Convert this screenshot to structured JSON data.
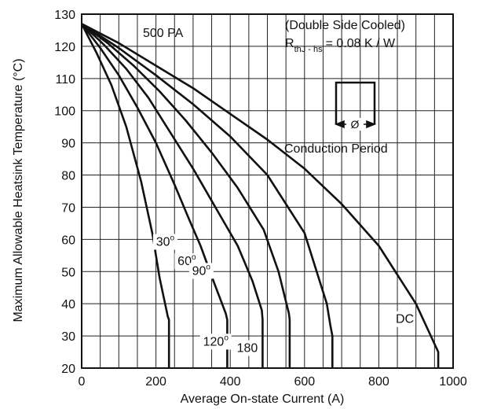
{
  "chart_data": {
    "type": "line",
    "title": "",
    "xlabel": "Average On-state Current (A)",
    "ylabel": "Maximum Allowable Heatsink Temperature (°C)",
    "xlim": [
      0,
      1000
    ],
    "ylim": [
      20,
      130
    ],
    "xticks": [
      0,
      200,
      400,
      600,
      800,
      1000
    ],
    "yticks": [
      20,
      30,
      40,
      50,
      60,
      70,
      80,
      90,
      100,
      110,
      120,
      130
    ],
    "grid": true,
    "annotations": {
      "device": "500 PA",
      "cooling": "(Double Side Cooled)",
      "rth_main": "R",
      "rth_sub": "thJ - hs",
      "rth_value": "= 0.08 K / W",
      "phi": "Ø",
      "conduction": "Conduction Period"
    },
    "series": [
      {
        "name": "30°",
        "label_main": "30",
        "label_sup": "o",
        "x": [
          0,
          40,
          80,
          120,
          160,
          190,
          210,
          232,
          235,
          235
        ],
        "y": [
          127,
          118,
          108,
          95,
          78,
          62,
          48,
          36,
          35,
          20
        ]
      },
      {
        "name": "60°",
        "label_main": "60",
        "label_sup": "o",
        "x": [
          0,
          50,
          100,
          150,
          200,
          250,
          290,
          320,
          355,
          388,
          392,
          392
        ],
        "y": [
          127,
          119.5,
          111,
          101,
          90,
          77,
          66,
          58,
          47,
          37,
          35,
          20
        ]
      },
      {
        "name": "90°",
        "label_main": "90",
        "label_sup": "o",
        "x": [
          0,
          60,
          120,
          180,
          240,
          300,
          360,
          420,
          460,
          485,
          487,
          487
        ],
        "y": [
          127,
          120.5,
          113,
          104,
          93,
          82,
          70,
          58,
          47,
          38,
          35,
          20
        ]
      },
      {
        "name": "120°",
        "label_main": "120",
        "label_sup": "o",
        "x": [
          0,
          70,
          140,
          210,
          280,
          350,
          420,
          490,
          530,
          558,
          560,
          560
        ],
        "y": [
          127,
          121,
          114,
          106,
          97,
          87,
          76,
          63,
          50,
          37,
          35,
          20
        ]
      },
      {
        "name": "180",
        "label_main": "180",
        "label_sup": "",
        "x": [
          0,
          100,
          200,
          300,
          400,
          500,
          600,
          660,
          670,
          675,
          675
        ],
        "y": [
          127,
          119.5,
          111,
          102,
          92,
          80,
          62,
          40,
          33,
          30,
          20
        ]
      },
      {
        "name": "DC",
        "label_main": "DC",
        "label_sup": "",
        "x": [
          0,
          100,
          200,
          300,
          400,
          500,
          600,
          700,
          800,
          900,
          960,
          960
        ],
        "y": [
          127,
          121,
          114,
          107,
          99,
          91,
          82,
          71,
          58,
          40,
          25,
          20
        ]
      }
    ]
  }
}
